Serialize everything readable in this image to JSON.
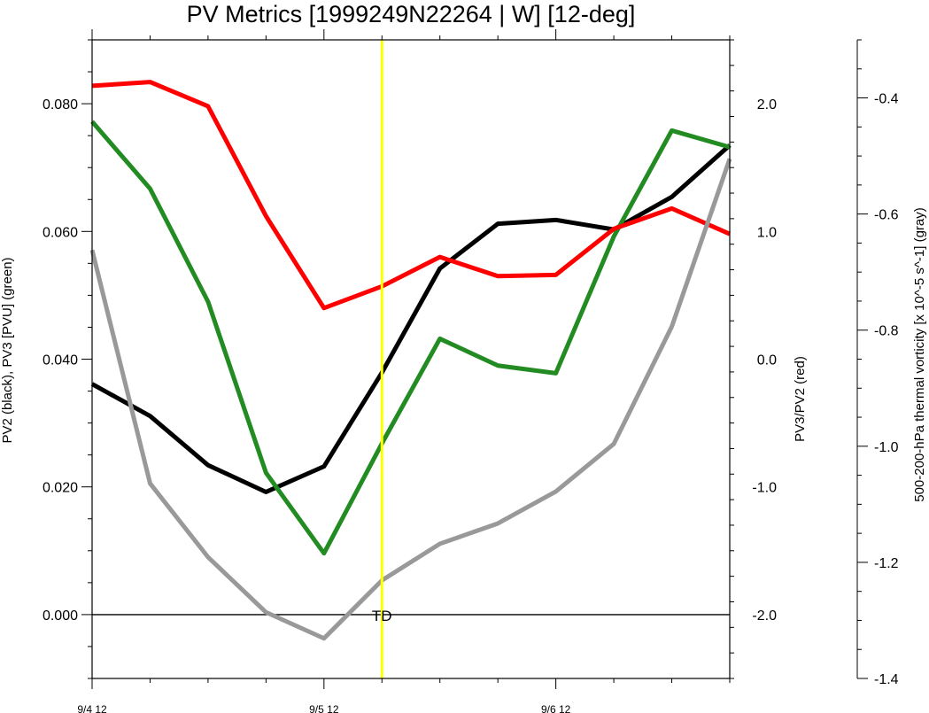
{
  "chart_data": {
    "type": "line",
    "title": "PV Metrics [1999249N22264 | W] [12-deg]",
    "x": [
      0,
      1,
      2,
      3,
      4,
      5,
      6,
      7,
      8,
      9,
      10,
      11
    ],
    "xticks": [
      {
        "x": 0,
        "label": "9/4 12"
      },
      {
        "x": 4,
        "label": "9/5 12"
      },
      {
        "x": 8,
        "label": "9/6 12"
      }
    ],
    "xlim": [
      0,
      11
    ],
    "left_axis": {
      "label": "PV2 (black), PV3 [PVU] (green)",
      "ylim": [
        -0.01,
        0.09
      ],
      "ticks": [
        0.0,
        0.02,
        0.04,
        0.06,
        0.08
      ],
      "tick_labels": [
        "0.000",
        "0.020",
        "0.040",
        "0.060",
        "0.080"
      ]
    },
    "right_axis": {
      "label": "PV3/PV2 (red)",
      "ylim": [
        -2.5,
        2.5
      ],
      "ticks": [
        -2.0,
        -1.0,
        0.0,
        1.0,
        2.0
      ],
      "tick_labels": [
        "-2.0",
        "-1.0",
        "0.0",
        "1.0",
        "2.0"
      ]
    },
    "far_right_axis": {
      "label": "500-200-hPa thermal vorticity [x 10^-5 s^-1] (gray)",
      "ylim": [
        -1.4,
        -0.3
      ],
      "ticks": [
        -1.4,
        -1.2,
        -1.0,
        -0.8,
        -0.6,
        -0.4
      ],
      "tick_labels": [
        "-1.4",
        "-1.2",
        "-1.0",
        "-0.8",
        "-0.6",
        "-0.4"
      ]
    },
    "series": [
      {
        "axis": "left",
        "color": "#000000",
        "values": [
          0.0361,
          0.0311,
          0.0234,
          0.0192,
          0.0232,
          0.0379,
          0.0542,
          0.0612,
          0.0618,
          0.0603,
          0.0654,
          0.0735
        ]
      },
      {
        "axis": "left",
        "color": "#228b22",
        "values": [
          0.0772,
          0.0667,
          0.049,
          0.0222,
          0.0096,
          0.0268,
          0.0432,
          0.039,
          0.0378,
          0.0592,
          0.0758,
          0.0732
        ]
      },
      {
        "axis": "right",
        "color": "#ff0000",
        "values": [
          2.14,
          2.17,
          1.98,
          1.12,
          0.4,
          0.57,
          0.8,
          0.65,
          0.66,
          1.02,
          1.18,
          0.98
        ]
      },
      {
        "axis": "far_right",
        "color": "#999999",
        "values": [
          -0.662,
          -1.064,
          -1.191,
          -1.286,
          -1.331,
          -1.231,
          -1.168,
          -1.133,
          -1.078,
          -0.996,
          -0.794,
          -0.505
        ]
      }
    ],
    "zero_line": {
      "axis": "left",
      "value": 0.0
    },
    "event_marker": {
      "x": 5,
      "label": "TD",
      "color": "#ffff00"
    },
    "grid": false
  }
}
